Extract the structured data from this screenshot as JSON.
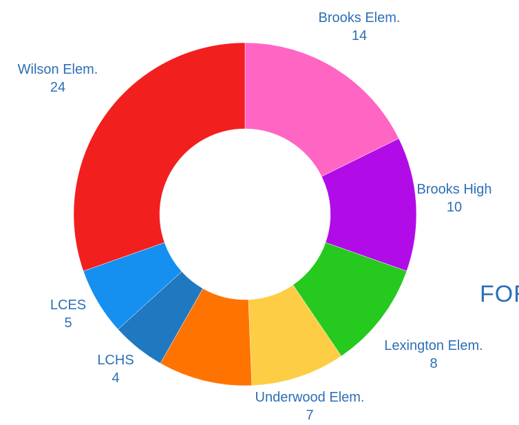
{
  "side_text": "FOR",
  "chart_data": {
    "type": "pie",
    "title": "",
    "categories": [
      "Brooks Elem.",
      "Brooks High",
      "Lexington Elem.",
      "Underwood Elem.",
      "LCHS",
      "LCES",
      "Wilson Elem."
    ],
    "values": [
      14,
      10,
      8,
      7,
      4,
      5,
      24
    ],
    "colors": [
      "#ff66c4",
      "#b10ce8",
      "#26c91e",
      "#fdcd45",
      "#ff7300",
      "#1f78c0",
      "#1590f0",
      "#f21f1f"
    ],
    "slice_colors": [
      "#ff66c4",
      "#b10ce8",
      "#26c91e",
      "#fdcd45",
      "#ff7300",
      "#1f78c0",
      "#1590f0",
      "#f21f1f"
    ],
    "label_color": "#2c6fb5",
    "donut": true,
    "legend": "none"
  }
}
